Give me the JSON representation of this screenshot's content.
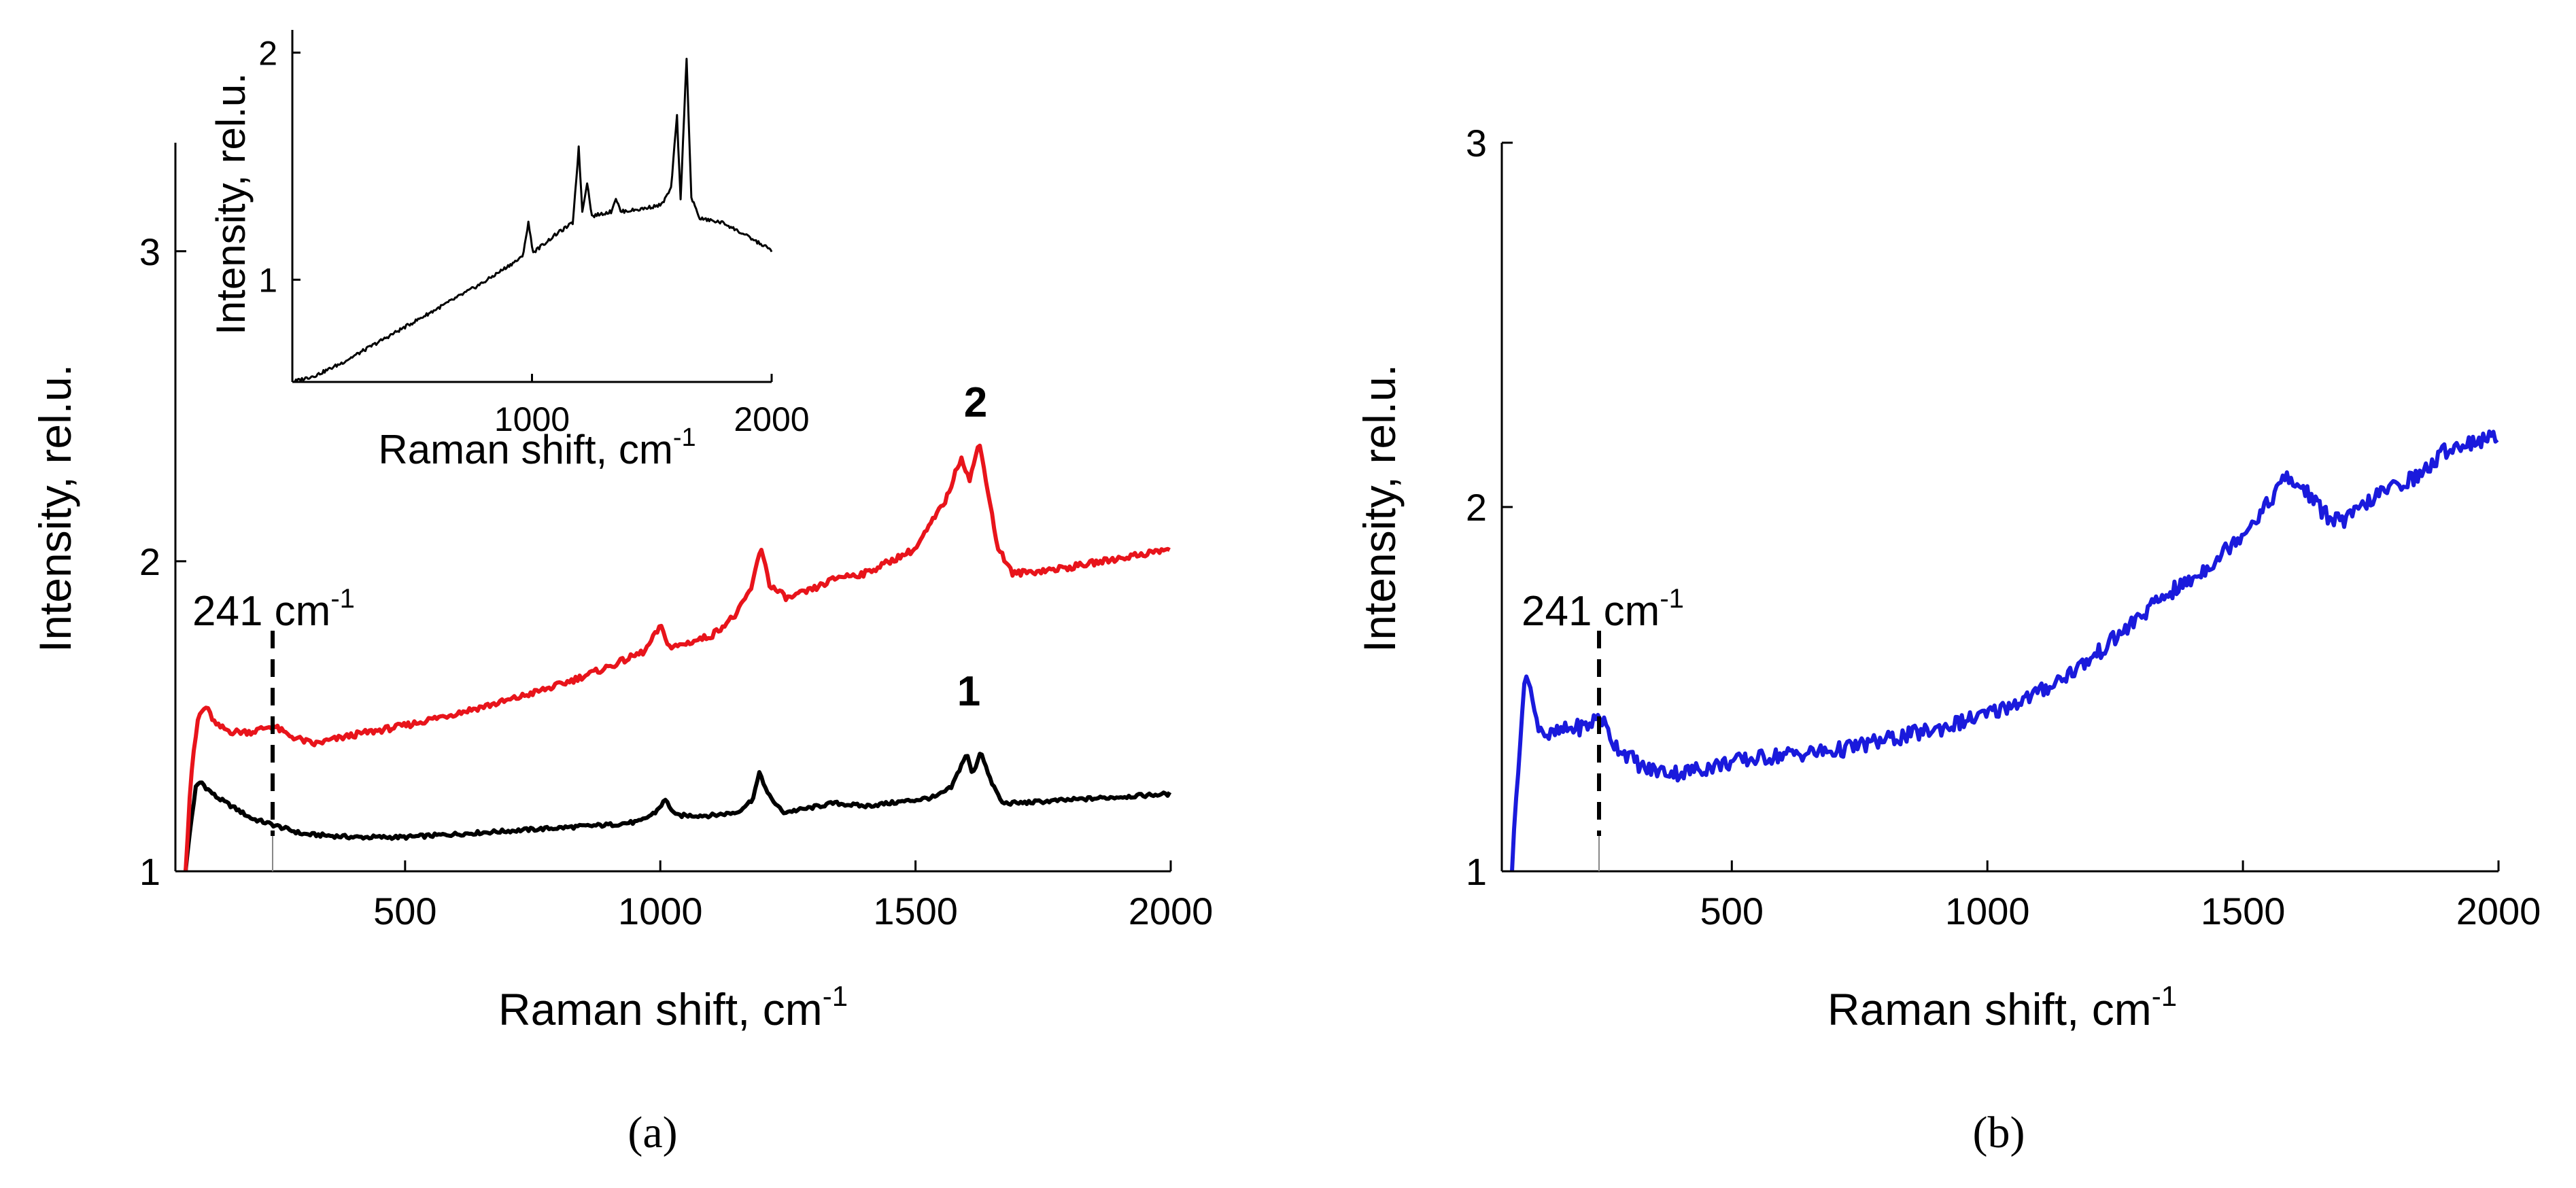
{
  "chart_data": [
    {
      "id": "a",
      "type": "line",
      "panel_label": "(a)",
      "xlabel": "Raman shift, cm",
      "xlabel_sup": "-1",
      "ylabel": "Intensity, rel.u.",
      "xlim": [
        50,
        2000
      ],
      "ylim": [
        1,
        3.35
      ],
      "xticks": [
        500,
        1000,
        1500,
        2000
      ],
      "xtick_labels": [
        "500",
        "1000",
        "1500",
        "2000"
      ],
      "yticks": [
        1,
        2,
        3
      ],
      "ytick_labels": [
        "1",
        "2",
        "3"
      ],
      "annotation": {
        "text": "241 cm",
        "sup": "-1",
        "x": 241
      },
      "series": [
        {
          "name": "1",
          "color": "#000000",
          "label_at": [
            1610,
            1.43
          ],
          "points": [
            [
              70,
              1.0
            ],
            [
              80,
              1.15
            ],
            [
              90,
              1.27
            ],
            [
              100,
              1.29
            ],
            [
              110,
              1.27
            ],
            [
              130,
              1.24
            ],
            [
              160,
              1.21
            ],
            [
              200,
              1.17
            ],
            [
              241,
              1.15
            ],
            [
              300,
              1.12
            ],
            [
              400,
              1.11
            ],
            [
              500,
              1.11
            ],
            [
              600,
              1.12
            ],
            [
              700,
              1.13
            ],
            [
              800,
              1.14
            ],
            [
              900,
              1.15
            ],
            [
              960,
              1.16
            ],
            [
              990,
              1.19
            ],
            [
              1010,
              1.23
            ],
            [
              1030,
              1.18
            ],
            [
              1100,
              1.18
            ],
            [
              1150,
              1.19
            ],
            [
              1180,
              1.23
            ],
            [
              1195,
              1.32
            ],
            [
              1210,
              1.25
            ],
            [
              1240,
              1.19
            ],
            [
              1280,
              1.2
            ],
            [
              1340,
              1.22
            ],
            [
              1400,
              1.21
            ],
            [
              1450,
              1.22
            ],
            [
              1500,
              1.23
            ],
            [
              1540,
              1.24
            ],
            [
              1570,
              1.27
            ],
            [
              1600,
              1.38
            ],
            [
              1612,
              1.31
            ],
            [
              1628,
              1.39
            ],
            [
              1645,
              1.3
            ],
            [
              1670,
              1.22
            ],
            [
              1700,
              1.22
            ],
            [
              1800,
              1.23
            ],
            [
              1900,
              1.24
            ],
            [
              2000,
              1.25
            ]
          ]
        },
        {
          "name": "2",
          "color": "#e8141b",
          "label_at": [
            1620,
            2.47
          ],
          "points": [
            [
              70,
              1.0
            ],
            [
              80,
              1.3
            ],
            [
              95,
              1.5
            ],
            [
              110,
              1.53
            ],
            [
              130,
              1.47
            ],
            [
              160,
              1.45
            ],
            [
              200,
              1.45
            ],
            [
              241,
              1.47
            ],
            [
              270,
              1.44
            ],
            [
              320,
              1.41
            ],
            [
              400,
              1.44
            ],
            [
              500,
              1.47
            ],
            [
              600,
              1.51
            ],
            [
              700,
              1.55
            ],
            [
              800,
              1.6
            ],
            [
              900,
              1.66
            ],
            [
              970,
              1.71
            ],
            [
              1000,
              1.79
            ],
            [
              1020,
              1.72
            ],
            [
              1100,
              1.76
            ],
            [
              1150,
              1.83
            ],
            [
              1180,
              1.92
            ],
            [
              1197,
              2.05
            ],
            [
              1215,
              1.92
            ],
            [
              1250,
              1.88
            ],
            [
              1300,
              1.91
            ],
            [
              1350,
              1.95
            ],
            [
              1400,
              1.96
            ],
            [
              1450,
              2.0
            ],
            [
              1500,
              2.04
            ],
            [
              1530,
              2.12
            ],
            [
              1560,
              2.2
            ],
            [
              1590,
              2.34
            ],
            [
              1605,
              2.26
            ],
            [
              1625,
              2.38
            ],
            [
              1640,
              2.25
            ],
            [
              1660,
              2.05
            ],
            [
              1690,
              1.96
            ],
            [
              1750,
              1.97
            ],
            [
              1800,
              1.98
            ],
            [
              1900,
              2.01
            ],
            [
              2000,
              2.04
            ]
          ]
        }
      ],
      "inset": {
        "xlabel": "Raman shift, cm",
        "xlabel_sup": "-1",
        "ylabel": "Intensity, rel.u.",
        "xlim": [
          0,
          2000
        ],
        "ylim": [
          0.55,
          2.1
        ],
        "xticks": [
          1000,
          2000
        ],
        "xtick_labels": [
          "1000",
          "2000"
        ],
        "yticks": [
          1,
          2
        ],
        "ytick_labels": [
          "1",
          "2"
        ],
        "series": [
          {
            "name": "inset",
            "color": "#000000",
            "points": [
              [
                0,
                0.55
              ],
              [
                100,
                0.58
              ],
              [
                200,
                0.63
              ],
              [
                300,
                0.69
              ],
              [
                400,
                0.75
              ],
              [
                500,
                0.81
              ],
              [
                600,
                0.87
              ],
              [
                700,
                0.93
              ],
              [
                800,
                0.99
              ],
              [
                900,
                1.06
              ],
              [
                960,
                1.1
              ],
              [
                985,
                1.25
              ],
              [
                1005,
                1.12
              ],
              [
                1100,
                1.2
              ],
              [
                1170,
                1.25
              ],
              [
                1195,
                1.58
              ],
              [
                1210,
                1.3
              ],
              [
                1230,
                1.43
              ],
              [
                1250,
                1.28
              ],
              [
                1330,
                1.3
              ],
              [
                1350,
                1.36
              ],
              [
                1370,
                1.3
              ],
              [
                1450,
                1.31
              ],
              [
                1540,
                1.33
              ],
              [
                1580,
                1.4
              ],
              [
                1605,
                1.72
              ],
              [
                1620,
                1.35
              ],
              [
                1645,
                1.98
              ],
              [
                1665,
                1.36
              ],
              [
                1700,
                1.27
              ],
              [
                1800,
                1.25
              ],
              [
                1900,
                1.19
              ],
              [
                2000,
                1.13
              ]
            ]
          }
        ]
      }
    },
    {
      "id": "b",
      "type": "line",
      "panel_label": "(b)",
      "xlabel": "Raman shift, cm",
      "xlabel_sup": "-1",
      "ylabel": "Intensity, rel.u.",
      "xlim": [
        50,
        2000
      ],
      "ylim": [
        1,
        3
      ],
      "xticks": [
        500,
        1000,
        1500,
        2000
      ],
      "xtick_labels": [
        "500",
        "1000",
        "1500",
        "2000"
      ],
      "yticks": [
        1,
        2,
        3
      ],
      "ytick_labels": [
        "1",
        "2",
        "3"
      ],
      "annotation": {
        "text": "241 cm",
        "sup": "-1",
        "x": 241
      },
      "series": [
        {
          "name": "b",
          "color": "#1a1adc",
          "points": [
            [
              70,
              1.0
            ],
            [
              80,
              1.25
            ],
            [
              90,
              1.45
            ],
            [
              100,
              1.56
            ],
            [
              115,
              1.42
            ],
            [
              140,
              1.37
            ],
            [
              180,
              1.39
            ],
            [
              220,
              1.4
            ],
            [
              241,
              1.43
            ],
            [
              270,
              1.35
            ],
            [
              330,
              1.28
            ],
            [
              400,
              1.27
            ],
            [
              500,
              1.3
            ],
            [
              600,
              1.32
            ],
            [
              700,
              1.33
            ],
            [
              800,
              1.36
            ],
            [
              900,
              1.39
            ],
            [
              1000,
              1.43
            ],
            [
              1100,
              1.49
            ],
            [
              1200,
              1.58
            ],
            [
              1250,
              1.64
            ],
            [
              1300,
              1.7
            ],
            [
              1350,
              1.76
            ],
            [
              1400,
              1.8
            ],
            [
              1450,
              1.86
            ],
            [
              1500,
              1.93
            ],
            [
              1550,
              2.01
            ],
            [
              1580,
              2.08
            ],
            [
              1620,
              2.05
            ],
            [
              1660,
              1.98
            ],
            [
              1700,
              1.96
            ],
            [
              1750,
              2.02
            ],
            [
              1800,
              2.06
            ],
            [
              1850,
              2.09
            ],
            [
              1900,
              2.16
            ],
            [
              1950,
              2.18
            ],
            [
              2000,
              2.19
            ]
          ]
        }
      ]
    }
  ]
}
